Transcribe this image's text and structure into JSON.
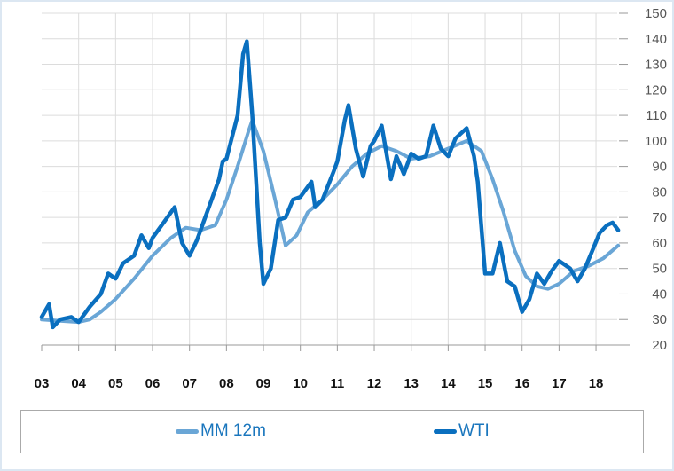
{
  "chart_data": {
    "type": "line",
    "title": "",
    "xlabel": "",
    "ylabel": "",
    "x_tick_labels": [
      "03",
      "04",
      "05",
      "06",
      "07",
      "08",
      "09",
      "10",
      "11",
      "12",
      "13",
      "14",
      "15",
      "16",
      "17",
      "18"
    ],
    "y_ticks": [
      20,
      30,
      40,
      50,
      60,
      70,
      80,
      90,
      100,
      110,
      120,
      130,
      140,
      150
    ],
    "ylim": [
      20,
      150
    ],
    "xlim": [
      2003,
      2019.0
    ],
    "y_axis_side": "right",
    "grid": true,
    "legend_position": "bottom",
    "series": [
      {
        "name": "MM 12m",
        "color": "#6aa6d6",
        "x": [
          2003.0,
          2003.5,
          2004.0,
          2004.3,
          2004.6,
          2005.0,
          2005.5,
          2006.0,
          2006.5,
          2006.9,
          2007.3,
          2007.7,
          2008.0,
          2008.3,
          2008.6,
          2008.7,
          2009.0,
          2009.3,
          2009.6,
          2009.9,
          2010.2,
          2010.6,
          2011.0,
          2011.4,
          2011.8,
          2012.2,
          2012.6,
          2013.0,
          2013.5,
          2014.0,
          2014.5,
          2014.9,
          2015.2,
          2015.5,
          2015.8,
          2016.1,
          2016.4,
          2016.7,
          2017.0,
          2017.4,
          2017.8,
          2018.2,
          2018.6
        ],
        "y": [
          30,
          29.5,
          29,
          30,
          33,
          38,
          46,
          55,
          62,
          66,
          65,
          67,
          77,
          90,
          104,
          108,
          96,
          78,
          59,
          63,
          72,
          77,
          83,
          90,
          95,
          98,
          96,
          93,
          94,
          97,
          100,
          96,
          85,
          72,
          57,
          47,
          43,
          42,
          44,
          49,
          51,
          54,
          59
        ]
      },
      {
        "name": "WTI",
        "color": "#0a6fbf",
        "x": [
          2003.0,
          2003.2,
          2003.3,
          2003.5,
          2003.8,
          2004.0,
          2004.3,
          2004.6,
          2004.8,
          2005.0,
          2005.2,
          2005.5,
          2005.7,
          2005.9,
          2006.0,
          2006.3,
          2006.6,
          2006.8,
          2007.0,
          2007.2,
          2007.5,
          2007.8,
          2007.9,
          2008.0,
          2008.3,
          2008.45,
          2008.55,
          2008.7,
          2008.9,
          2009.0,
          2009.2,
          2009.4,
          2009.6,
          2009.8,
          2010.0,
          2010.3,
          2010.4,
          2010.6,
          2010.9,
          2011.0,
          2011.2,
          2011.3,
          2011.5,
          2011.7,
          2011.9,
          2012.0,
          2012.2,
          2012.45,
          2012.6,
          2012.8,
          2013.0,
          2013.2,
          2013.4,
          2013.6,
          2013.8,
          2014.0,
          2014.2,
          2014.5,
          2014.7,
          2014.8,
          2015.0,
          2015.2,
          2015.4,
          2015.6,
          2015.8,
          2016.0,
          2016.2,
          2016.4,
          2016.6,
          2016.8,
          2017.0,
          2017.3,
          2017.5,
          2017.7,
          2017.9,
          2018.1,
          2018.3,
          2018.45,
          2018.6
        ],
        "y": [
          31,
          36,
          27,
          30,
          31,
          29,
          35,
          40,
          48,
          46,
          52,
          55,
          63,
          58,
          62,
          68,
          74,
          60,
          55,
          61,
          73,
          85,
          92,
          93,
          110,
          134,
          139,
          110,
          60,
          44,
          50,
          69,
          70,
          77,
          78,
          84,
          74,
          77,
          88,
          92,
          108,
          114,
          97,
          86,
          98,
          100,
          106,
          85,
          94,
          87,
          95,
          93,
          94,
          106,
          97,
          94,
          101,
          105,
          94,
          84,
          48,
          48,
          60,
          45,
          43,
          33,
          38,
          48,
          44,
          49,
          53,
          50,
          45,
          50,
          57,
          64,
          67,
          68,
          65
        ]
      }
    ]
  }
}
